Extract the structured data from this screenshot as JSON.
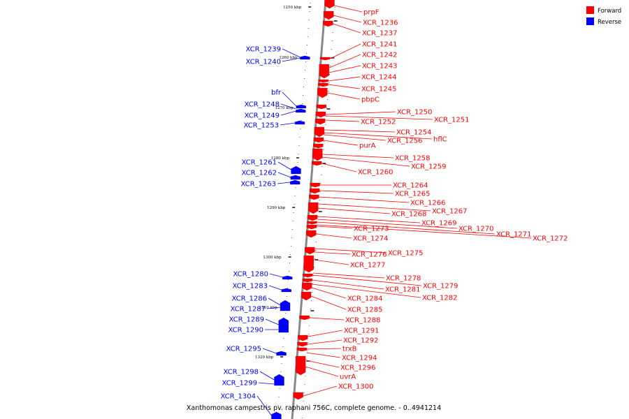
{
  "title": "Xanthomonas campestris pv. raphani 756C, complete genome. - 0..4941214",
  "colors": {
    "forward": "#ff0000",
    "reverse": "#0000ff",
    "axis": "#888888"
  },
  "legend": [
    {
      "label": "Forward",
      "color": "#ff0000"
    },
    {
      "label": "Reverse",
      "color": "#0000ff"
    }
  ],
  "ticks": [
    "1250 kbp",
    "1260 kbp",
    "1270 kbp",
    "1280 kbp",
    "1290 kbp",
    "1300 kbp",
    "1310 kbp",
    "1320 kbp"
  ],
  "forward_genes": [
    "prpF",
    "XCR_1236",
    "XCR_1237",
    "XCR_1241",
    "XCR_1242",
    "XCR_1243",
    "XCR_1244",
    "XCR_1245",
    "pbpC",
    "XCR_1250",
    "XCR_1251",
    "XCR_1252",
    "XCR_1254",
    "hflC",
    "XCR_1256",
    "purA",
    "XCR_1258",
    "XCR_1259",
    "XCR_1260",
    "XCR_1264",
    "XCR_1265",
    "XCR_1266",
    "XCR_1267",
    "XCR_1268",
    "XCR_1269",
    "XCR_1270",
    "XCR_1271",
    "XCR_1272",
    "XCR_1273",
    "XCR_1274",
    "XCR_1275",
    "XCR_1276",
    "XCR_1277",
    "XCR_1278",
    "XCR_1279",
    "XCR_1281",
    "XCR_1282",
    "XCR_1284",
    "XCR_1285",
    "XCR_1288",
    "XCR_1291",
    "XCR_1292",
    "trxB",
    "XCR_1294",
    "XCR_1296",
    "uvrA",
    "XCR_1300"
  ],
  "reverse_genes": [
    "XCR_1239",
    "XCR_1240",
    "bfr",
    "XCR_1248",
    "XCR_1249",
    "XCR_1253",
    "XCR_1261",
    "XCR_1262",
    "XCR_1263",
    "XCR_1280",
    "XCR_1283",
    "XCR_1286",
    "XCR_1287",
    "XCR_1289",
    "XCR_1290",
    "XCR_1295",
    "XCR_1298",
    "XCR_1299",
    "XCR_1304"
  ]
}
